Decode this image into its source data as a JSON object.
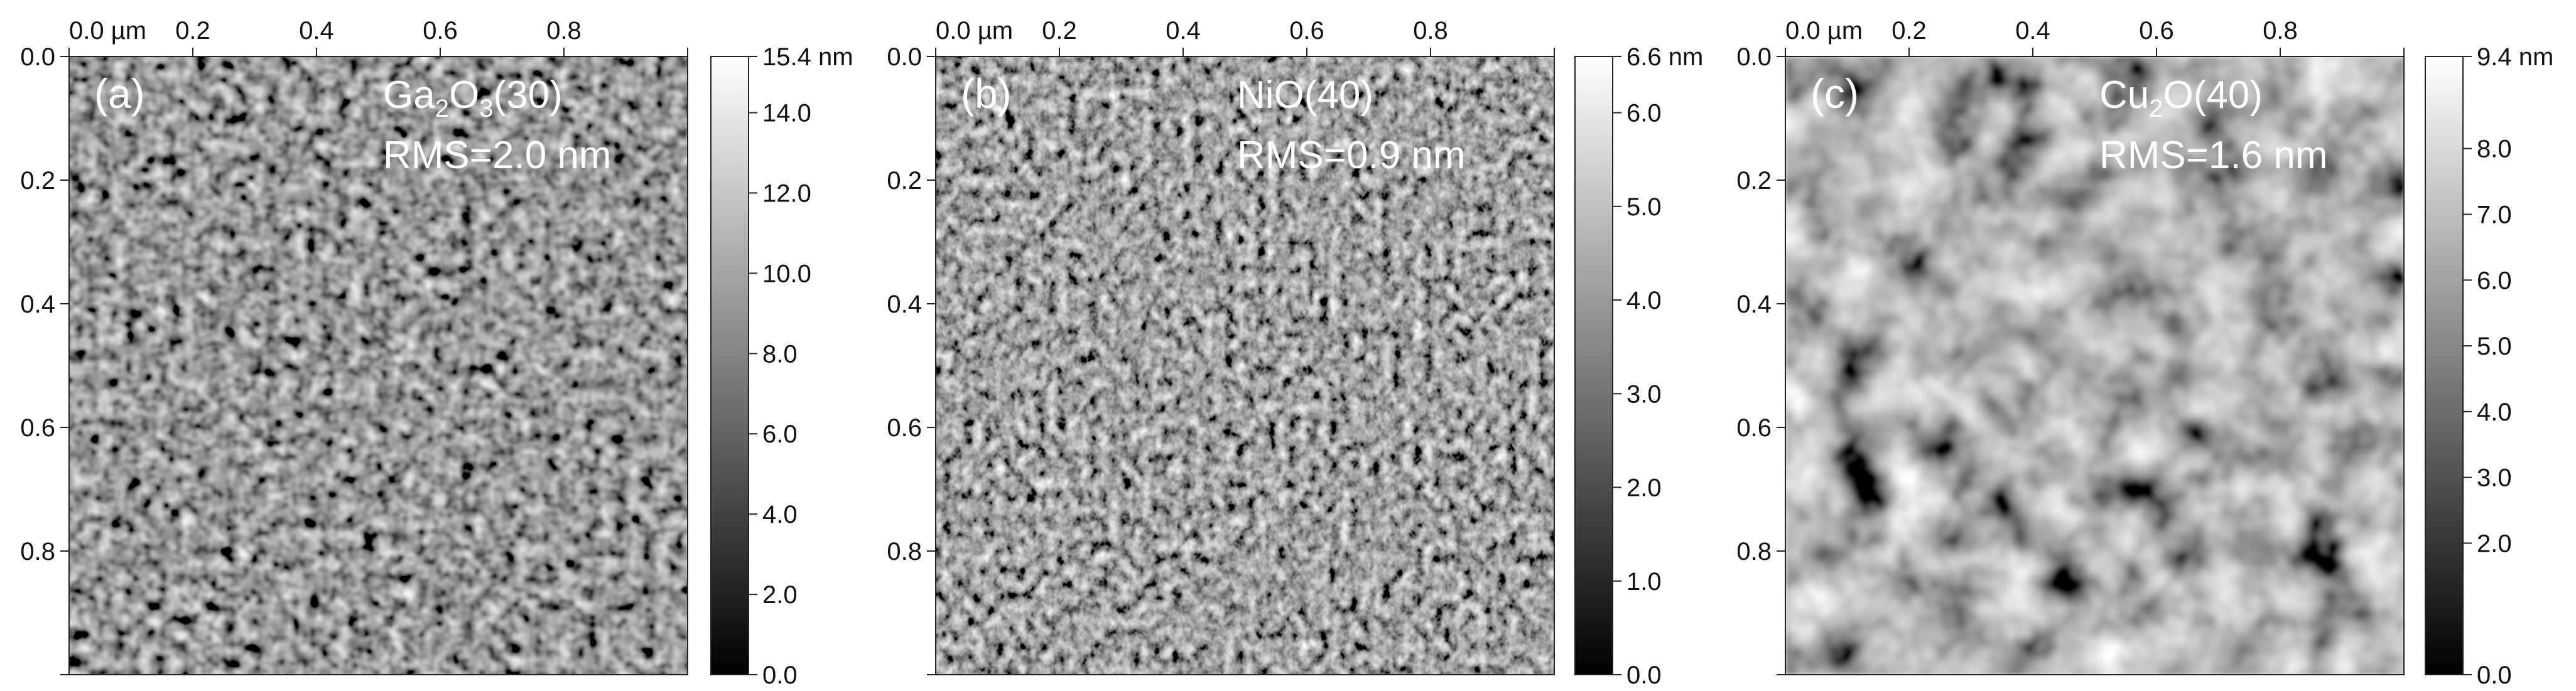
{
  "panels": [
    {
      "id": "a",
      "label": "(a)",
      "material": {
        "base": "Ga",
        "sub": "2",
        "mid": "O",
        "sub2": "3",
        "tail": "(30)"
      },
      "rms": "RMS=2.0 nm",
      "x_ticks": [
        "0.0 µm",
        "0.2",
        "0.4",
        "0.6",
        "0.8"
      ],
      "y_ticks": [
        "0.0",
        "0.2",
        "0.4",
        "0.6",
        "0.8"
      ],
      "colorbar_max": "15.4 nm",
      "colorbar_ticks": [
        "14.0",
        "12.0",
        "10.0",
        "8.0",
        "6.0",
        "4.0",
        "2.0",
        "0.0"
      ],
      "colorbar_tick_values": [
        14,
        12,
        10,
        8,
        6,
        4,
        2,
        0
      ],
      "colorbar_range": [
        0,
        15.4
      ]
    },
    {
      "id": "b",
      "label": "(b)",
      "material": {
        "base": "NiO",
        "sub": "",
        "mid": "",
        "sub2": "",
        "tail": "(40)"
      },
      "rms": "RMS=0.9 nm",
      "x_ticks": [
        "0.0 µm",
        "0.2",
        "0.4",
        "0.6",
        "0.8"
      ],
      "y_ticks": [
        "0.0",
        "0.2",
        "0.4",
        "0.6",
        "0.8"
      ],
      "colorbar_max": "6.6 nm",
      "colorbar_ticks": [
        "6.0",
        "5.0",
        "4.0",
        "3.0",
        "2.0",
        "1.0",
        "0.0"
      ],
      "colorbar_tick_values": [
        6,
        5,
        4,
        3,
        2,
        1,
        0
      ],
      "colorbar_range": [
        0,
        6.6
      ]
    },
    {
      "id": "c",
      "label": "(c)",
      "material": {
        "base": "Cu",
        "sub": "2",
        "mid": "O",
        "sub2": "",
        "tail": "(40)"
      },
      "rms": "RMS=1.6 nm",
      "x_ticks": [
        "0.0 µm",
        "0.2",
        "0.4",
        "0.6",
        "0.8"
      ],
      "y_ticks": [
        "0.0",
        "0.2",
        "0.4",
        "0.6",
        "0.8"
      ],
      "colorbar_max": "9.4 nm",
      "colorbar_ticks": [
        "8.0",
        "7.0",
        "6.0",
        "5.0",
        "4.0",
        "3.0",
        "2.0",
        "0.0"
      ],
      "colorbar_tick_values": [
        8,
        7,
        6,
        5,
        4,
        3,
        2,
        0
      ],
      "colorbar_range": [
        0,
        9.4
      ]
    }
  ]
}
